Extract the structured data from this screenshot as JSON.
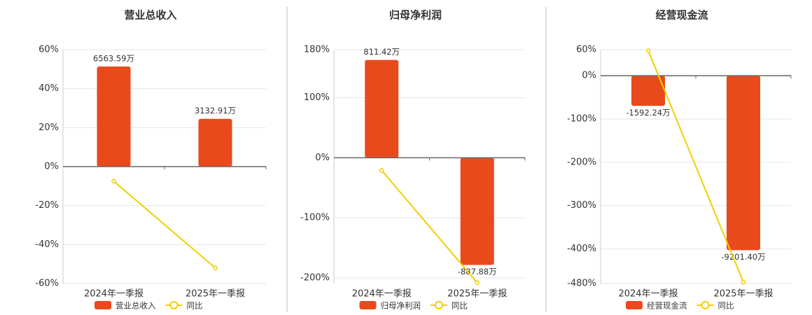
{
  "chart_data": [
    {
      "type": "bar",
      "title": "营业总收入",
      "categories": [
        "2024年一季报",
        "2025年一季报"
      ],
      "ylim": [
        -60,
        60
      ],
      "yticks": [
        {
          "value": 60,
          "label": "60%"
        },
        {
          "value": 40,
          "label": "40%"
        },
        {
          "value": 20,
          "label": "20%"
        },
        {
          "value": 0,
          "label": "0%"
        },
        {
          "value": -20,
          "label": "-20%"
        },
        {
          "value": -40,
          "label": "-40%"
        },
        {
          "value": -60,
          "label": "-60%"
        }
      ],
      "y2lim": [
        -7662,
        7662
      ],
      "grid": true,
      "series": [
        {
          "name": "营业总收入",
          "type": "bar",
          "axis": "y2",
          "color": "#e84a1c",
          "values": [
            6563.59,
            3132.91
          ],
          "value_labels": [
            "6563.59万",
            "3132.91万"
          ]
        },
        {
          "name": "同比",
          "type": "line",
          "color": "#f0cf00",
          "values": [
            -7.5,
            -52
          ]
        }
      ]
    },
    {
      "type": "bar",
      "title": "归母净利润",
      "categories": [
        "2024年一季报",
        "2025年一季报"
      ],
      "ylim": [
        -209.3,
        180
      ],
      "yticks": [
        {
          "value": 180,
          "label": "180%"
        },
        {
          "value": 100,
          "label": "100%"
        },
        {
          "value": 0,
          "label": "0%"
        },
        {
          "value": -100,
          "label": "-100%"
        },
        {
          "value": -200,
          "label": "-200%"
        }
      ],
      "y2lim": [
        -1042,
        896
      ],
      "grid": true,
      "series": [
        {
          "name": "归母净利润",
          "type": "bar",
          "axis": "y2",
          "color": "#e84a1c",
          "values": [
            811.42,
            -887.88
          ],
          "value_labels": [
            "811.42万",
            "-887.88万"
          ]
        },
        {
          "name": "同比",
          "type": "line",
          "color": "#f0cf00",
          "values": [
            -21,
            -208
          ]
        }
      ]
    },
    {
      "type": "bar",
      "title": "经营现金流",
      "categories": [
        "2024年一季报",
        "2025年一季报"
      ],
      "ylim": [
        -480,
        60
      ],
      "yticks": [
        {
          "value": 60,
          "label": "60%"
        },
        {
          "value": 0,
          "label": "0%"
        },
        {
          "value": -100,
          "label": "-100%"
        },
        {
          "value": -200,
          "label": "-200%"
        },
        {
          "value": -300,
          "label": "-300%"
        },
        {
          "value": -400,
          "label": "-400%"
        },
        {
          "value": -480,
          "label": "-480%"
        }
      ],
      "y2lim": [
        -10958,
        1370
      ],
      "grid": true,
      "series": [
        {
          "name": "经营现金流",
          "type": "bar",
          "axis": "y2",
          "color": "#e84a1c",
          "values": [
            -1592.24,
            -9201.4
          ],
          "value_labels": [
            "-1592.24万",
            "-9201.40万"
          ]
        },
        {
          "name": "同比",
          "type": "line",
          "color": "#f0cf00",
          "values": [
            58,
            -477
          ]
        }
      ]
    }
  ]
}
